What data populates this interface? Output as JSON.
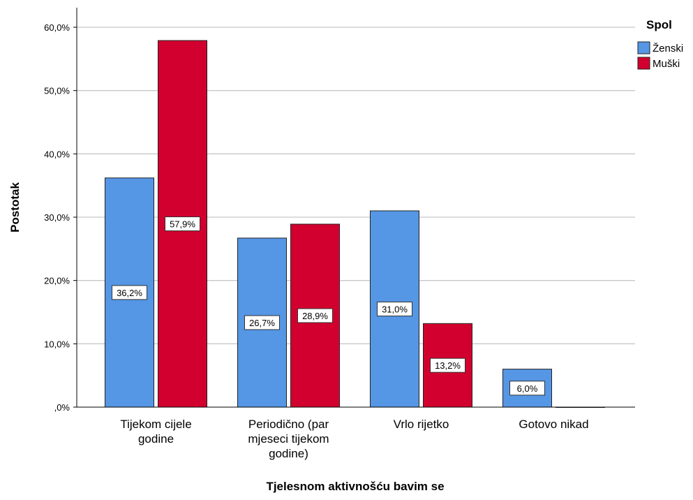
{
  "chart_data": {
    "type": "bar",
    "categories": [
      [
        "Tijekom cijele",
        "godine"
      ],
      [
        "Periodično (par",
        "mjeseci tijekom",
        "godine)"
      ],
      [
        "Vrlo rijetko"
      ],
      [
        "Gotovo nikad"
      ]
    ],
    "series": [
      {
        "name": "Ženski",
        "color": "#5596e5",
        "values": [
          36.2,
          26.7,
          31.0,
          6.0
        ],
        "labels": [
          "36,2%",
          "26,7%",
          "31,0%",
          "6,0%"
        ]
      },
      {
        "name": "Muški",
        "color": "#d2002e",
        "values": [
          57.9,
          28.9,
          13.2,
          0.0
        ],
        "labels": [
          "57,9%",
          "28,9%",
          "13,2%",
          ""
        ]
      }
    ],
    "xlabel": "Tjelesnom aktivnošću bavim se",
    "ylabel": "Postotak",
    "ylim": [
      0,
      60
    ],
    "yticks": [
      0,
      10,
      20,
      30,
      40,
      50,
      60
    ],
    "ytick_labels": [
      ",0%",
      "10,0%",
      "20,0%",
      "30,0%",
      "40,0%",
      "50,0%",
      "60,0%"
    ],
    "legend_title": "Spol",
    "legend_position": "top-right",
    "grid": true
  }
}
